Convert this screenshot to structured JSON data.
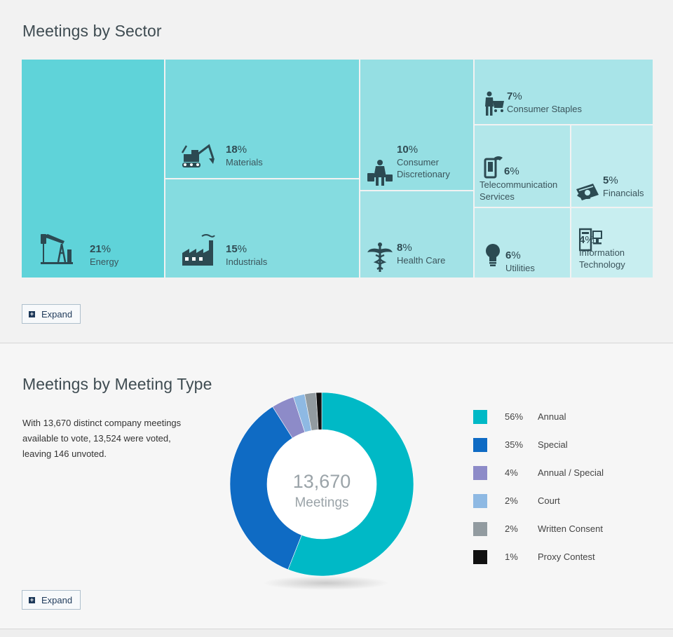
{
  "sector_section": {
    "title": "Meetings by Sector",
    "expand_label": "Expand"
  },
  "type_section": {
    "title": "Meetings by Meeting Type",
    "description": "With 13,670 distinct company meetings available to vote, 13,524 were voted, leaving 146 unvoted.",
    "center_value": "13,670",
    "center_label": "Meetings",
    "expand_label": "Expand"
  },
  "chart_data": [
    {
      "type": "treemap",
      "title": "Meetings by Sector",
      "items": [
        {
          "name": "Energy",
          "label_lines": [
            "Energy"
          ],
          "value": 21,
          "pct_num": "21",
          "icon": "oil-pump-icon",
          "color": "#5fd3d9"
        },
        {
          "name": "Materials",
          "label_lines": [
            "Materials"
          ],
          "value": 18,
          "pct_num": "18",
          "icon": "excavator-icon",
          "color": "#79d9de"
        },
        {
          "name": "Industrials",
          "label_lines": [
            "Industrials"
          ],
          "value": 15,
          "pct_num": "15",
          "icon": "factory-icon",
          "color": "#85dce0"
        },
        {
          "name": "Consumer Discretionary",
          "label_lines": [
            "Consumer",
            "Discretionary"
          ],
          "value": 10,
          "pct_num": "10",
          "icon": "shopper-icon",
          "color": "#95dfe3"
        },
        {
          "name": "Health Care",
          "label_lines": [
            "Health Care"
          ],
          "value": 8,
          "pct_num": "8",
          "icon": "caduceus-icon",
          "color": "#a2e2e6"
        },
        {
          "name": "Consumer Staples",
          "label_lines": [
            "Consumer Staples"
          ],
          "value": 7,
          "pct_num": "7",
          "icon": "shopping-cart-person-icon",
          "color": "#a8e4e8"
        },
        {
          "name": "Telecommunication Services",
          "label_lines": [
            "Telecommunication",
            "Services"
          ],
          "value": 6,
          "pct_num": "6",
          "icon": "mobile-phone-icon",
          "color": "#b2e7ea"
        },
        {
          "name": "Utilities",
          "label_lines": [
            "Utilities"
          ],
          "value": 6,
          "pct_num": "6",
          "icon": "light-bulb-icon",
          "color": "#b8e9ec"
        },
        {
          "name": "Financials",
          "label_lines": [
            "Financials"
          ],
          "value": 5,
          "pct_num": "5",
          "icon": "money-icon",
          "color": "#bfebee"
        },
        {
          "name": "Information Technology",
          "label_lines": [
            "Information",
            "Technology"
          ],
          "value": 4,
          "pct_num": "4",
          "icon": "computer-icon",
          "color": "#c8eef0"
        }
      ]
    },
    {
      "type": "donut",
      "title": "Meetings by Meeting Type",
      "total": "13,670",
      "slices": [
        {
          "name": "Annual",
          "value": 56,
          "pct": "56%",
          "color": "#00b9c6"
        },
        {
          "name": "Special",
          "value": 35,
          "pct": "35%",
          "color": "#0f6bc4"
        },
        {
          "name": "Annual / Special",
          "value": 4,
          "pct": "4%",
          "color": "#8d8bc8"
        },
        {
          "name": "Court",
          "value": 2,
          "pct": "2%",
          "color": "#8eb9e3"
        },
        {
          "name": "Written Consent",
          "value": 2,
          "pct": "2%",
          "color": "#929ba0"
        },
        {
          "name": "Proxy Contest",
          "value": 1,
          "pct": "1%",
          "color": "#111111"
        }
      ]
    }
  ]
}
